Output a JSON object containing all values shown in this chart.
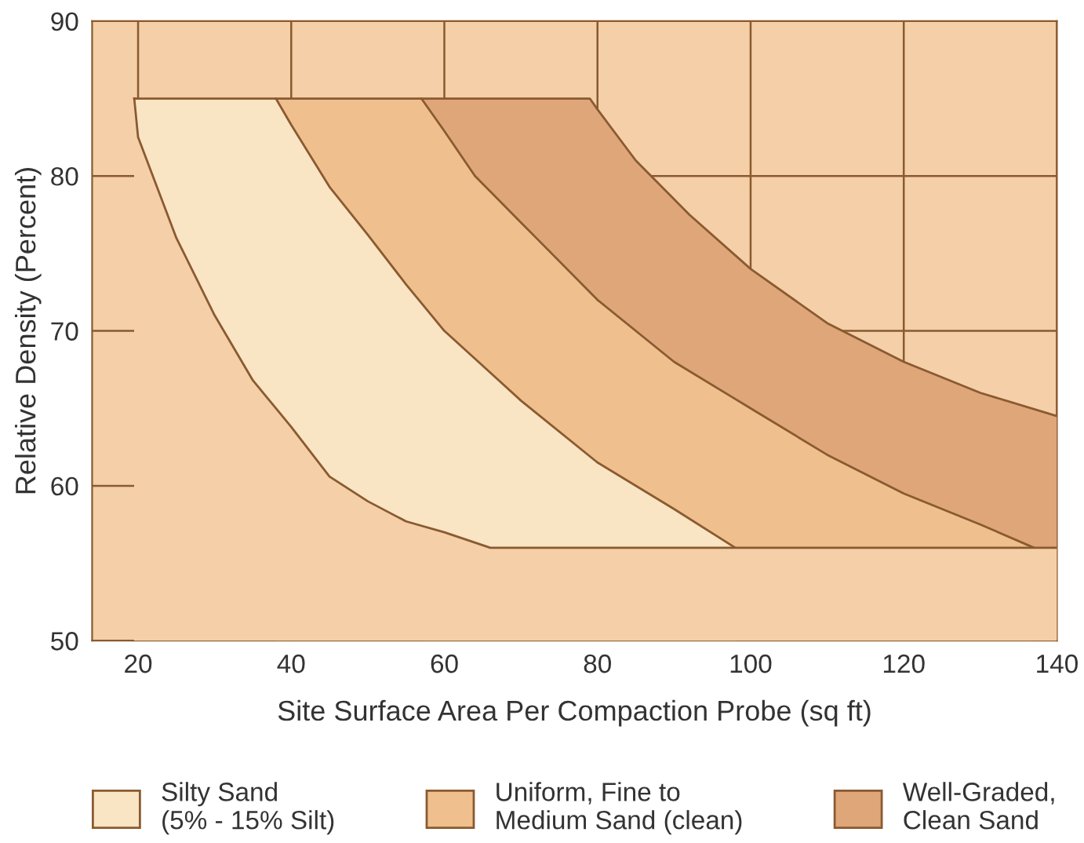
{
  "chart_data": {
    "type": "area",
    "xlabel": "Site Surface Area Per Compaction Probe (sq ft)",
    "ylabel": "Relative Density (Percent)",
    "xlim": [
      14,
      140
    ],
    "ylim": [
      50,
      90
    ],
    "xticks": [
      20,
      40,
      60,
      80,
      100,
      120,
      140
    ],
    "yticks": [
      50,
      60,
      70,
      80,
      90
    ],
    "grid": true,
    "legend": "bottom",
    "series": [
      {
        "color": "#f4cfa8",
        "x": [
          19.5,
          20,
          25,
          30,
          35,
          38,
          40,
          45,
          50,
          55,
          60,
          66,
          140
        ],
        "values": [
          85,
          82.5,
          76,
          71,
          66.8,
          65,
          63.8,
          60.6,
          59,
          57.7,
          57,
          56,
          56
        ]
      },
      {
        "name": "Silty Sand\n(5% - 15% Silt)",
        "color": "#f9e4c4",
        "x": [
          19.5,
          38,
          40,
          45,
          50,
          55,
          60,
          66,
          70,
          80,
          90,
          98
        ],
        "values": [
          85,
          85,
          83.3,
          79.3,
          76.2,
          73,
          70,
          67.3,
          65.5,
          61.5,
          58.5,
          56
        ]
      },
      {
        "name": "Uniform, Fine to\nMedium Sand (clean)",
        "color": "#efc08e",
        "x": [
          38,
          57,
          60,
          64,
          70,
          72,
          80,
          90,
          98,
          100,
          110,
          120,
          130,
          137
        ],
        "values": [
          85,
          85,
          82.9,
          80,
          77,
          76,
          72,
          68,
          65.6,
          65,
          62,
          59.5,
          57.5,
          56
        ]
      },
      {
        "name": "Well-Graded,\nClean Sand",
        "color": "#dfa67a",
        "x": [
          57,
          79,
          80,
          85,
          90,
          92,
          100,
          110,
          120,
          130,
          140
        ],
        "values": [
          85,
          85,
          84.3,
          81,
          78.5,
          77.5,
          74,
          70.5,
          68,
          66,
          64.5
        ]
      }
    ]
  }
}
